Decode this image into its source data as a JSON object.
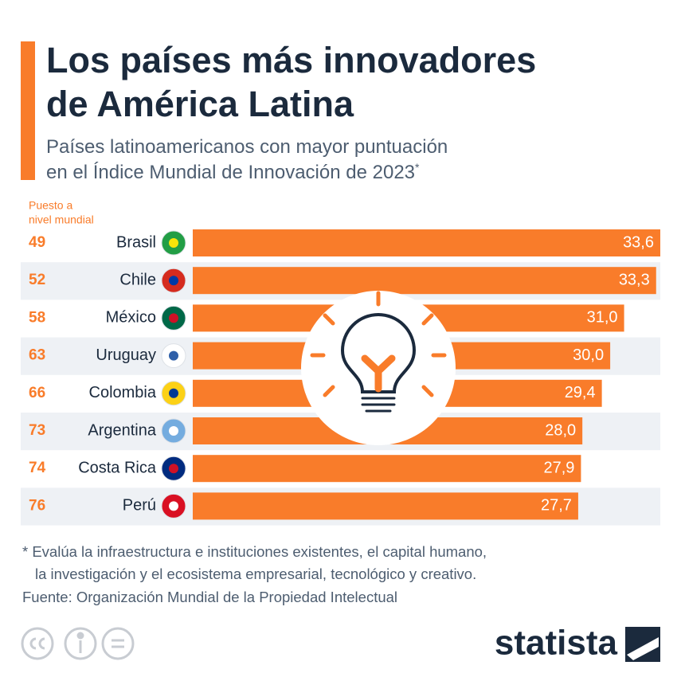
{
  "chart_data": {
    "type": "bar",
    "title": [
      "Los países más innovadores",
      "de América Latina"
    ],
    "subtitle": [
      "Países latinoamericanos con mayor puntuación",
      "en el Índice Mundial de Innovación de 2023"
    ],
    "subtitle_mark": "*",
    "rank_header": [
      "Puesto a",
      "nivel mundial"
    ],
    "categories": [
      "Brasil",
      "Chile",
      "México",
      "Uruguay",
      "Colombia",
      "Argentina",
      "Costa Rica",
      "Perú"
    ],
    "ranks": [
      49,
      52,
      58,
      63,
      66,
      73,
      74,
      76
    ],
    "values": [
      33.6,
      33.3,
      31.0,
      30.0,
      29.4,
      28.0,
      27.9,
      27.7
    ],
    "value_labels": [
      "33,6",
      "33,3",
      "31,0",
      "30,0",
      "29,4",
      "28,0",
      "27,9",
      "27,7"
    ],
    "color": "#f97c2a",
    "footnote": [
      "* Evalúa la infraestructura e instituciones existentes, el capital humano,",
      "la investigación y el ecosistema empresarial, tecnológico y creativo."
    ],
    "source": "Fuente: Organización Mundial de la Propiedad Intelectual",
    "brand": "statista"
  }
}
